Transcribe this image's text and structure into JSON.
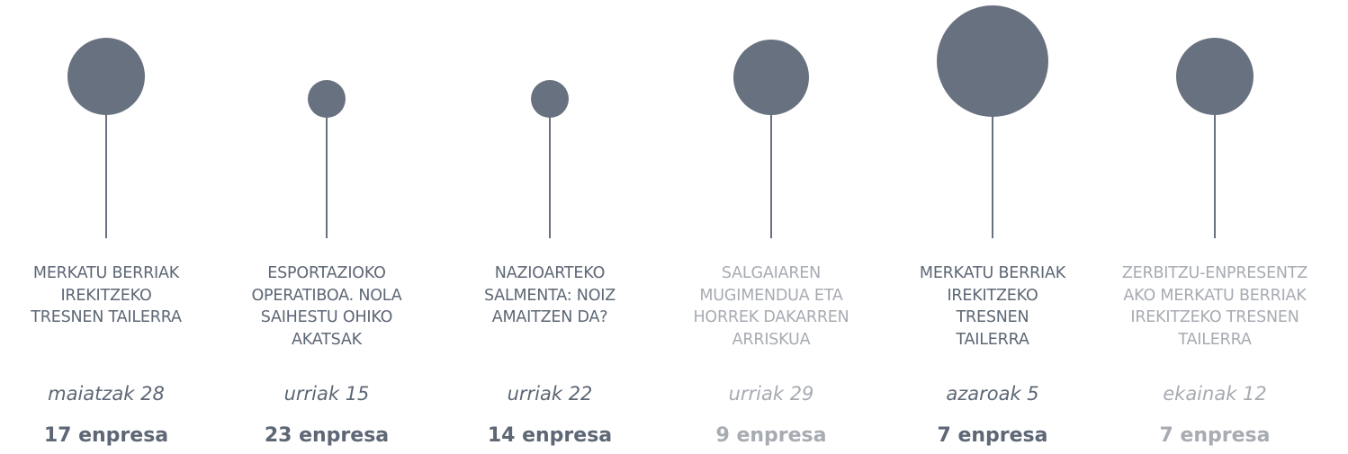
{
  "items": [
    {
      "title_lines": [
        "MERKATU BERRIAK",
        "IREKITZEKO",
        "TRESNEN TAILERRA"
      ],
      "date": "maiatzak 28",
      "count": "17 enpresa"
    },
    {
      "title_lines": [
        "ESPORTAZIOKO",
        "OPERATIBOA. NOLA",
        "SAIHESTU OHIKO",
        "AKATSAK"
      ],
      "date": "urriak 15",
      "count": "23 enpresa"
    },
    {
      "title_lines": [
        "NAZIOARTEKO",
        "SALMENTA: NOIZ",
        "AMAITZEN DA?"
      ],
      "date": "urriak 22",
      "count": "14 enpresa"
    },
    {
      "title_lines": [
        "SALGAIAREN",
        "MUGIMENDUA ETA",
        "HORREK DAKARREN",
        "ARRISKUA"
      ],
      "date": "urriak 29",
      "count": "9 enpresa"
    },
    {
      "title_lines": [
        "MERKATU BERRIAK",
        "IREKITZEKO",
        "TRESNEN",
        "TAILERRA"
      ],
      "date": "azaroak 5",
      "count": "7 enpresa"
    },
    {
      "title_lines": [
        "ZERBITZU-ENPRESENTZ",
        "AKO MERKATU BERRIAK",
        "IREKITZEKO TRESNEN",
        "TAILERRA"
      ],
      "date": "ekainak 12",
      "count": "7 enpresa"
    }
  ]
}
